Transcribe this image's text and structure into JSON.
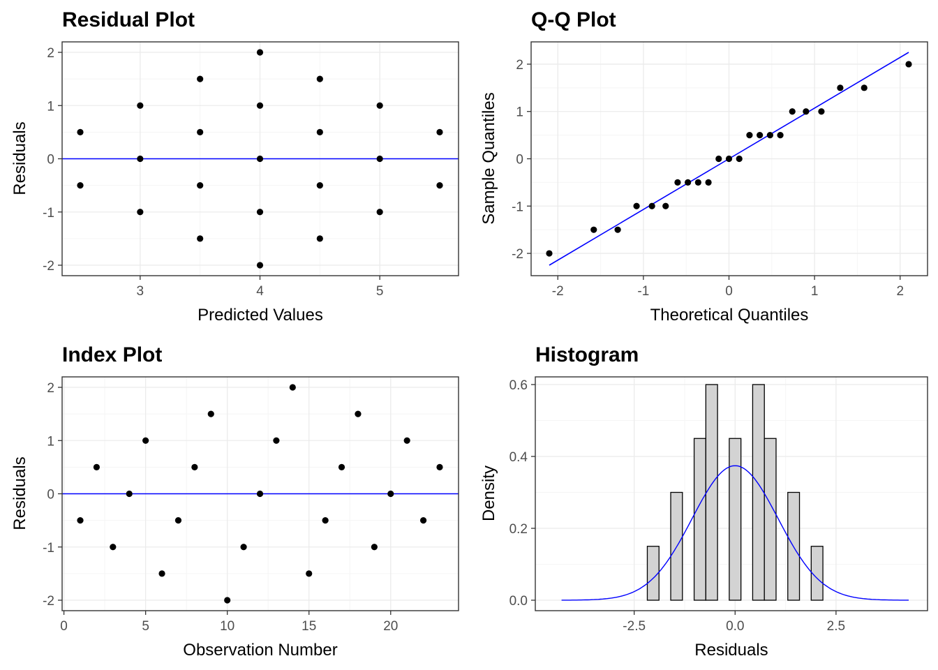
{
  "colors": {
    "points": "#000000",
    "ref_line": "#0000ff",
    "bar_fill": "#d3d3d3",
    "panel_border": "#333333",
    "grid_major": "#ebebeb",
    "grid_minor": "#f5f5f5"
  },
  "chart_data": [
    {
      "type": "scatter",
      "title": "Residual Plot",
      "xlabel": "Predicted Values",
      "ylabel": "Residuals",
      "xlim": [
        2.5,
        5.5
      ],
      "ylim": [
        -2,
        2
      ],
      "xticks": [
        3,
        4,
        5
      ],
      "yticks": [
        -2,
        -1,
        0,
        1,
        2
      ],
      "grid": true,
      "hline": 0,
      "points": [
        [
          2.5,
          0.5
        ],
        [
          2.5,
          -0.5
        ],
        [
          3,
          1
        ],
        [
          3,
          0
        ],
        [
          3,
          -1
        ],
        [
          3.5,
          1.5
        ],
        [
          3.5,
          0.5
        ],
        [
          3.5,
          -0.5
        ],
        [
          3.5,
          -1.5
        ],
        [
          4,
          2
        ],
        [
          4,
          1
        ],
        [
          4,
          0
        ],
        [
          4,
          -1
        ],
        [
          4,
          -2
        ],
        [
          4.5,
          1.5
        ],
        [
          4.5,
          0.5
        ],
        [
          4.5,
          -0.5
        ],
        [
          4.5,
          -1.5
        ],
        [
          5,
          1
        ],
        [
          5,
          0
        ],
        [
          5,
          -1
        ],
        [
          5.5,
          0.5
        ],
        [
          5.5,
          -0.5
        ]
      ]
    },
    {
      "type": "scatter",
      "title": "Q-Q Plot",
      "xlabel": "Theoretical Quantiles",
      "ylabel": "Sample Quantiles",
      "xlim": [
        -2.1,
        2.1
      ],
      "ylim": [
        -2.25,
        2.25
      ],
      "xticks": [
        -2,
        -1,
        0,
        1,
        2
      ],
      "yticks": [
        -2,
        -1,
        0,
        1,
        2
      ],
      "grid": true,
      "ref_line": {
        "from": [
          -2.1,
          -2.25
        ],
        "to": [
          2.1,
          2.25
        ]
      },
      "points": [
        [
          -2.1,
          -2
        ],
        [
          -1.58,
          -1.5
        ],
        [
          -1.3,
          -1.5
        ],
        [
          -1.08,
          -1
        ],
        [
          -0.9,
          -1
        ],
        [
          -0.74,
          -1
        ],
        [
          -0.6,
          -0.5
        ],
        [
          -0.48,
          -0.5
        ],
        [
          -0.36,
          -0.5
        ],
        [
          -0.24,
          -0.5
        ],
        [
          -0.12,
          0
        ],
        [
          0,
          0
        ],
        [
          0.12,
          0
        ],
        [
          0.24,
          0.5
        ],
        [
          0.36,
          0.5
        ],
        [
          0.48,
          0.5
        ],
        [
          0.6,
          0.5
        ],
        [
          0.74,
          1
        ],
        [
          0.9,
          1
        ],
        [
          1.08,
          1
        ],
        [
          1.3,
          1.5
        ],
        [
          1.58,
          1.5
        ],
        [
          2.1,
          2
        ]
      ]
    },
    {
      "type": "scatter",
      "title": "Index Plot",
      "xlabel": "Observation Number",
      "ylabel": "Residuals",
      "xlim": [
        1,
        23
      ],
      "ylim": [
        -2,
        2
      ],
      "xticks": [
        0,
        5,
        10,
        15,
        20
      ],
      "yticks": [
        -2,
        -1,
        0,
        1,
        2
      ],
      "grid": true,
      "hline": 0,
      "points": [
        [
          1,
          -0.5
        ],
        [
          2,
          0.5
        ],
        [
          3,
          -1
        ],
        [
          4,
          0
        ],
        [
          5,
          1
        ],
        [
          6,
          -1.5
        ],
        [
          7,
          -0.5
        ],
        [
          8,
          0.5
        ],
        [
          9,
          1.5
        ],
        [
          10,
          -2
        ],
        [
          11,
          -1
        ],
        [
          12,
          0
        ],
        [
          13,
          1
        ],
        [
          14,
          2
        ],
        [
          15,
          -1.5
        ],
        [
          16,
          -0.5
        ],
        [
          17,
          0.5
        ],
        [
          18,
          1.5
        ],
        [
          19,
          -1
        ],
        [
          20,
          0
        ],
        [
          21,
          1
        ],
        [
          22,
          -0.5
        ],
        [
          23,
          0.5
        ]
      ]
    },
    {
      "type": "bar",
      "title": "Histogram",
      "xlabel": "Residuals",
      "ylabel": "Density",
      "xlim": [
        -4.5,
        4.3
      ],
      "ylim": [
        0,
        0.6
      ],
      "xticks": [
        -2.5,
        0,
        2.5
      ],
      "xtick_labels": [
        "-2.5",
        "0.0",
        "2.5"
      ],
      "yticks": [
        0,
        0.2,
        0.4,
        0.6
      ],
      "ytick_labels": [
        "0.0",
        "0.2",
        "0.4",
        "0.6"
      ],
      "grid": true,
      "bin_width": 0.29,
      "bins": [
        {
          "center": -2.03,
          "density": 0.15
        },
        {
          "center": -1.74,
          "density": 0
        },
        {
          "center": -1.45,
          "density": 0.3
        },
        {
          "center": -1.16,
          "density": 0
        },
        {
          "center": -0.87,
          "density": 0.45
        },
        {
          "center": -0.58,
          "density": 0.6
        },
        {
          "center": -0.29,
          "density": 0
        },
        {
          "center": 0.0,
          "density": 0.45
        },
        {
          "center": 0.29,
          "density": 0
        },
        {
          "center": 0.58,
          "density": 0.6
        },
        {
          "center": 0.87,
          "density": 0.45
        },
        {
          "center": 1.16,
          "density": 0
        },
        {
          "center": 1.45,
          "density": 0.3
        },
        {
          "center": 1.74,
          "density": 0
        },
        {
          "center": 2.03,
          "density": 0.15
        }
      ],
      "density_curve": {
        "type": "normal",
        "mean": 0,
        "sd": 1.066,
        "xmin": -4.3,
        "xmax": 4.3,
        "color": "#0000ff"
      }
    }
  ]
}
